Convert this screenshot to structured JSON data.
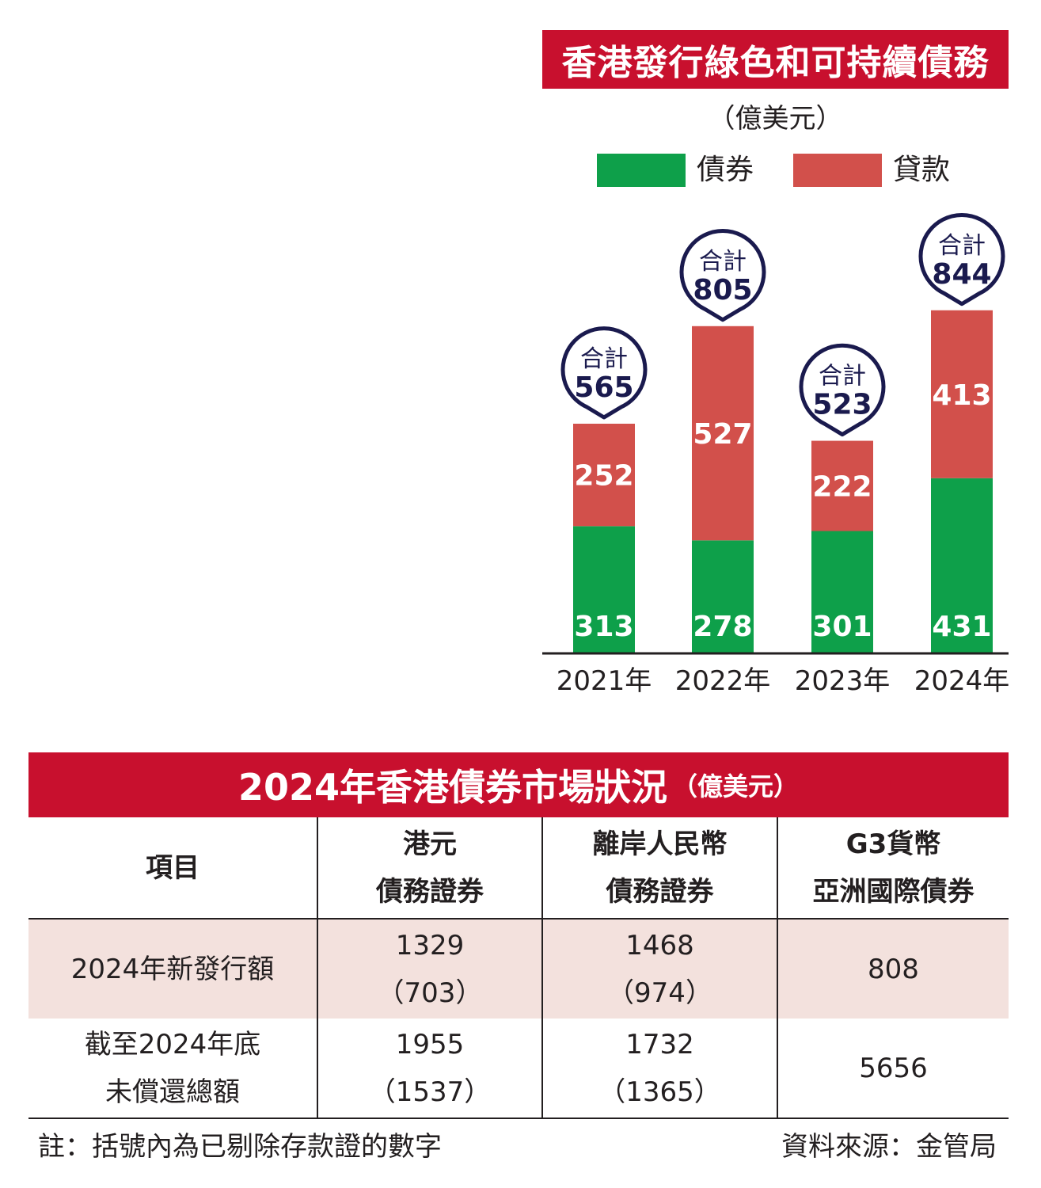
{
  "colors": {
    "bond": "#0ea04a",
    "loan": "#d2504b",
    "bubble": "#1a1a4e",
    "header": "#c8102e",
    "row_shade": "#f3e1dd"
  },
  "chart_data": {
    "type": "bar",
    "title": "香港發行綠色和可持續債務",
    "unit": "（億美元）",
    "categories": [
      "2021年",
      "2022年",
      "2023年",
      "2024年"
    ],
    "series": [
      {
        "name": "債券",
        "values": [
          313,
          278,
          301,
          431
        ]
      },
      {
        "name": "貸款",
        "values": [
          252,
          527,
          222,
          413
        ]
      }
    ],
    "totals_label": "合計",
    "totals": [
      565,
      805,
      523,
      844
    ],
    "stacked": true,
    "legend_position": "top"
  },
  "table": {
    "title": "2024年香港債券市場狀況",
    "unit": "（億美元）",
    "headers": [
      [
        "項目"
      ],
      [
        "港元",
        "債務證券"
      ],
      [
        "離岸人民幣",
        "債務證券"
      ],
      [
        "G3貨幣",
        "亞洲國際債券"
      ]
    ],
    "rows": [
      [
        [
          "2024年新發行額"
        ],
        [
          "1329",
          "（703）"
        ],
        [
          "1468",
          "（974）"
        ],
        [
          "808"
        ]
      ],
      [
        [
          "截至2024年底",
          "未償還總額"
        ],
        [
          "1955",
          "（1537）"
        ],
        [
          "1732",
          "（1365）"
        ],
        [
          "5656"
        ]
      ]
    ]
  },
  "note": "註：括號內為已剔除存款證的數字",
  "source": "資料來源：金管局"
}
